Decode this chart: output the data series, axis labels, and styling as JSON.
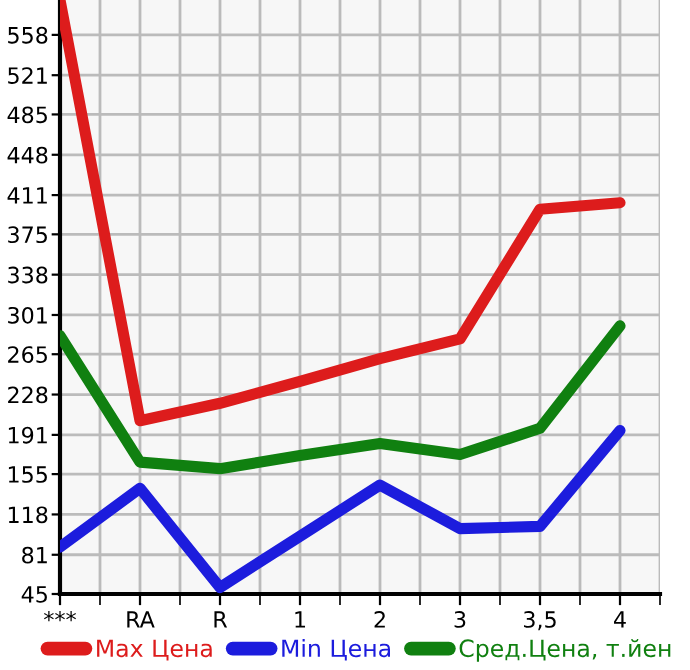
{
  "chart_data": {
    "type": "line",
    "categories": [
      "***",
      "RA",
      "R",
      "1",
      "2",
      "3",
      "3,5",
      "4"
    ],
    "series": [
      {
        "name": "Max Цена",
        "color": "#dd1c1c",
        "values": [
          590,
          204,
          220,
          240,
          261,
          279,
          398,
          404
        ]
      },
      {
        "name": "Min Цена",
        "color": "#1c1cdd",
        "values": [
          88,
          142,
          51,
          98,
          145,
          105,
          107,
          195
        ]
      },
      {
        "name": "Сред.Цена, т.йен",
        "color": "#108010",
        "values": [
          282,
          166,
          160,
          172,
          183,
          173,
          197,
          291
        ]
      }
    ],
    "ylim": [
      45,
      590
    ],
    "yticks": [
      45,
      81,
      118,
      155,
      191,
      228,
      265,
      301,
      338,
      375,
      411,
      448,
      485,
      521,
      558
    ],
    "grid": true,
    "legend": "bottom",
    "marker": "none",
    "line_style": "solid"
  }
}
